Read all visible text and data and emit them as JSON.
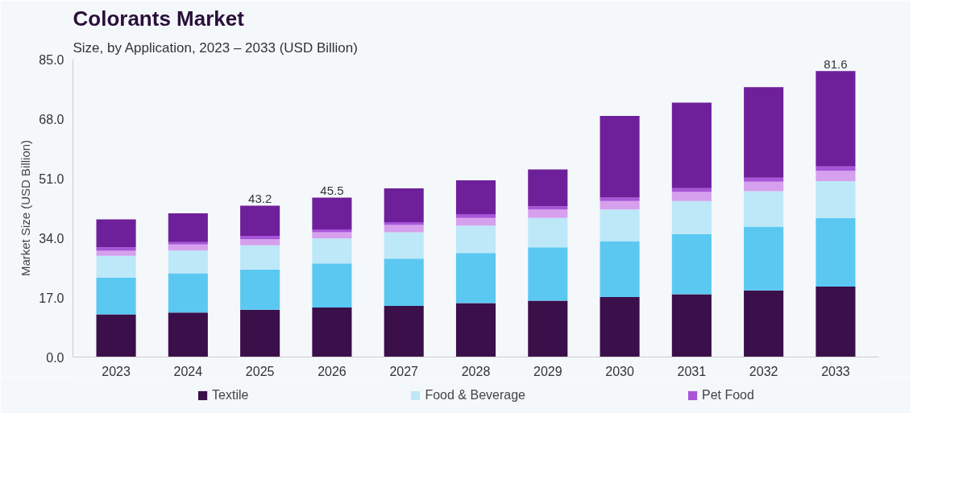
{
  "chart_data": {
    "type": "bar",
    "title": "Colorants Market",
    "subtitle": "Size, by Application, 2023 – 2033 (USD Billion)",
    "ylabel": "Market Size (USD Billion)",
    "categories": [
      "2023",
      "2024",
      "2025",
      "2026",
      "2027",
      "2028",
      "2029",
      "2030",
      "2031",
      "2032",
      "2033"
    ],
    "stacked": true,
    "series": [
      {
        "name": "Textile",
        "color": "#3a0f4a",
        "values": [
          12.2,
          12.7,
          13.5,
          14.1,
          14.6,
          15.4,
          16.1,
          17.1,
          17.9,
          19.0,
          20.1
        ]
      },
      {
        "color": "#5bc8f2",
        "values": [
          10.5,
          11.2,
          11.5,
          12.6,
          13.5,
          14.3,
          15.2,
          16.0,
          17.2,
          18.2,
          19.5
        ]
      },
      {
        "name": "Food & Beverage",
        "color": "#bde8f8",
        "values": [
          6.2,
          6.5,
          6.9,
          7.1,
          7.5,
          7.8,
          8.4,
          9.0,
          9.4,
          10.1,
          10.6
        ]
      },
      {
        "color": "#d6a0ee",
        "values": [
          1.4,
          1.7,
          1.7,
          1.8,
          2.1,
          2.2,
          2.4,
          2.4,
          2.6,
          2.7,
          2.9
        ]
      },
      {
        "name": "Pet Food",
        "color": "#a855d8",
        "values": [
          1.0,
          0.7,
          1.0,
          0.8,
          0.8,
          1.1,
          0.9,
          1.0,
          1.1,
          1.2,
          1.3
        ]
      },
      {
        "color": "#6e1f9a",
        "values": [
          8.0,
          8.2,
          8.6,
          9.1,
          9.6,
          9.6,
          10.5,
          23.3,
          24.4,
          25.8,
          27.2
        ]
      }
    ],
    "totals": [
      null,
      null,
      "43.2",
      "45.5",
      null,
      null,
      null,
      null,
      null,
      null,
      "81.6"
    ],
    "ylim": [
      0,
      85
    ],
    "yticks": [
      {
        "value": 0,
        "label": "0.0"
      },
      {
        "value": 17,
        "label": "17.0"
      },
      {
        "value": 34,
        "label": "34.0"
      },
      {
        "value": 51,
        "label": "51.0"
      },
      {
        "value": 68,
        "label": "68.0"
      },
      {
        "value": 85,
        "label": "85.0"
      }
    ],
    "grid": false,
    "legend": "bottom"
  }
}
